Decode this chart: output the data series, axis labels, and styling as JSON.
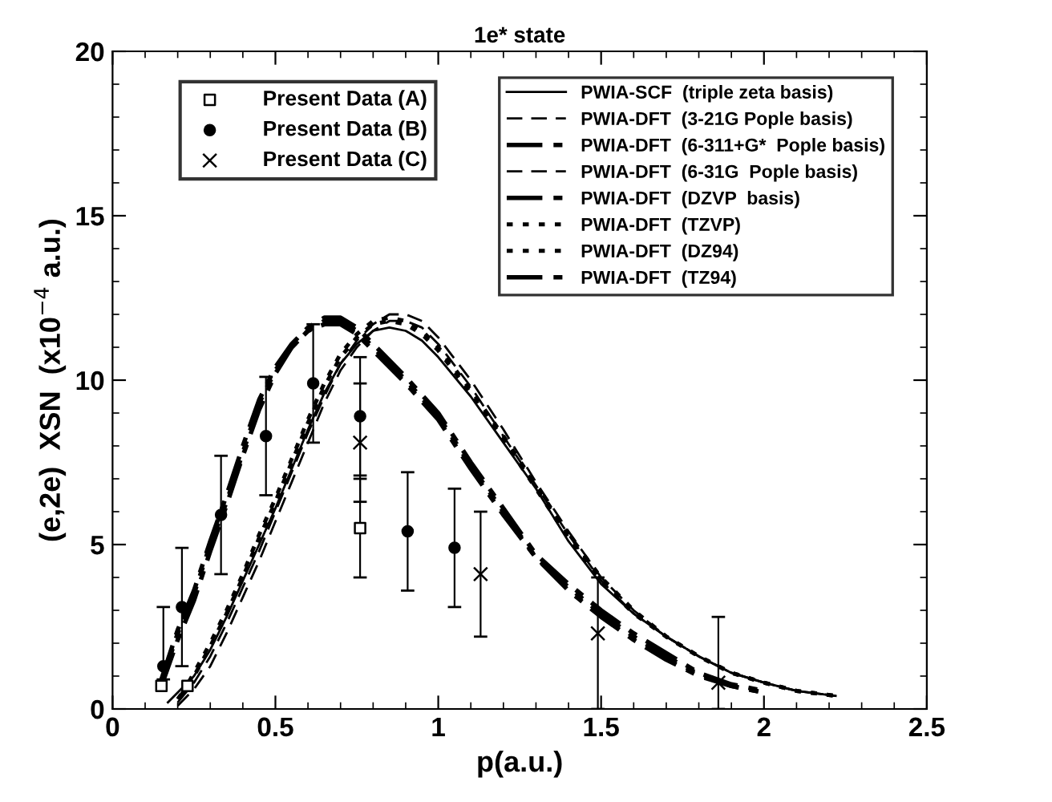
{
  "chart_data": {
    "type": "line",
    "title": "1e* state",
    "xlabel": "p(a.u.)",
    "ylabel": "(e,2e)  XSN  (x10$^{−4}$ a.u.)",
    "xlim": [
      0,
      2.5
    ],
    "ylim": [
      0,
      20
    ],
    "xticks": [
      0,
      0.5,
      1,
      1.5,
      2,
      2.5
    ],
    "yticks": [
      0,
      5,
      10,
      15,
      20
    ],
    "grid": false,
    "legend": "top",
    "series": [
      {
        "name": "Present Data (A)",
        "type": "scatter",
        "marker": "square",
        "color": "#000000",
        "x": [
          0.15,
          0.23,
          0.76
        ],
        "values": [
          0.7,
          0.7,
          5.5
        ],
        "errors": [
          null,
          null,
          [
            4.0,
            7.0
          ]
        ]
      },
      {
        "name": "Present Data (B)",
        "type": "scatter",
        "marker": "circle",
        "color": "#000000",
        "x": [
          0.156,
          0.213,
          0.333,
          0.471,
          0.616,
          0.76,
          0.906,
          1.05
        ],
        "values": [
          1.3,
          3.1,
          5.9,
          8.3,
          9.9,
          8.9,
          5.4,
          4.9
        ],
        "errors": [
          [
            0.9,
            3.1
          ],
          1.8,
          1.8,
          1.8,
          1.8,
          [
            7.1,
            10.7
          ],
          1.8,
          1.8
        ]
      },
      {
        "name": "Present Data (C)",
        "type": "scatter",
        "marker": "cross",
        "color": "#000000",
        "x": [
          0.76,
          1.13,
          1.49,
          1.86
        ],
        "values": [
          8.1,
          4.1,
          2.3,
          0.8
        ],
        "errors": [
          1.8,
          1.9,
          [
            0,
            4.0
          ],
          [
            0,
            2.8
          ]
        ]
      },
      {
        "name": "PWIA-SCF  (triple zeta basis)",
        "line_style": "solid",
        "color": "#000000",
        "x": [
          0.17,
          0.25,
          0.3,
          0.35,
          0.4,
          0.45,
          0.5,
          0.55,
          0.6,
          0.65,
          0.7,
          0.75,
          0.8,
          0.85,
          0.9,
          0.95,
          1.0,
          1.1,
          1.2,
          1.3,
          1.4,
          1.5,
          1.6,
          1.7,
          1.8,
          1.9,
          2.0,
          2.1,
          2.22
        ],
        "values": [
          0.2,
          1.0,
          1.8,
          2.8,
          3.9,
          5.0,
          6.1,
          7.3,
          8.5,
          9.6,
          10.5,
          11.1,
          11.5,
          11.6,
          11.5,
          11.2,
          10.7,
          9.5,
          8.1,
          6.7,
          5.1,
          3.8,
          2.9,
          2.2,
          1.6,
          1.1,
          0.8,
          0.55,
          0.4
        ]
      },
      {
        "name": "PWIA-DFT  (3-21G Pople basis)",
        "line_style": "dashed",
        "color": "#000000",
        "x": [
          0.2,
          0.25,
          0.3,
          0.35,
          0.4,
          0.45,
          0.5,
          0.55,
          0.6,
          0.65,
          0.7,
          0.75,
          0.8,
          0.85,
          0.9,
          0.95,
          1.0,
          1.1,
          1.2,
          1.3,
          1.4,
          1.5,
          1.6,
          1.7,
          1.8,
          1.9,
          2.0,
          2.1,
          2.22
        ],
        "values": [
          0.2,
          0.8,
          1.6,
          2.6,
          3.7,
          4.8,
          6.0,
          7.2,
          8.4,
          9.5,
          10.5,
          11.2,
          11.7,
          12.0,
          12.0,
          11.8,
          11.3,
          10.0,
          8.5,
          6.9,
          5.4,
          4.0,
          3.0,
          2.2,
          1.6,
          1.1,
          0.8,
          0.55,
          0.4
        ]
      },
      {
        "name": "PWIA-DFT  (6-311+G*  Pople basis)",
        "line_style": "dashdot",
        "color": "#000000",
        "x": [
          0.15,
          0.2,
          0.25,
          0.3,
          0.35,
          0.4,
          0.45,
          0.5,
          0.55,
          0.6,
          0.65,
          0.7,
          0.75,
          0.8,
          0.9,
          1.0,
          1.1,
          1.2,
          1.3,
          1.4,
          1.5,
          1.6,
          1.7,
          1.8,
          1.9,
          2.0
        ],
        "values": [
          0.8,
          2.3,
          3.5,
          5.0,
          6.3,
          7.8,
          9.3,
          10.3,
          11.0,
          11.5,
          11.8,
          11.8,
          11.5,
          11.0,
          10.0,
          8.9,
          7.4,
          6.0,
          4.6,
          3.7,
          2.9,
          2.2,
          1.6,
          1.05,
          0.7,
          0.5
        ]
      },
      {
        "name": "PWIA-DFT  (6-31G  Pople basis)",
        "line_style": "dashed",
        "color": "#000000",
        "x": [
          0.2,
          0.25,
          0.3,
          0.35,
          0.4,
          0.45,
          0.5,
          0.55,
          0.6,
          0.65,
          0.7,
          0.75,
          0.8,
          0.85,
          0.9,
          0.95,
          1.0,
          1.1,
          1.2,
          1.3,
          1.4,
          1.5,
          1.6,
          1.7,
          1.8,
          1.9,
          2.0,
          2.1,
          2.22
        ],
        "values": [
          0.1,
          0.6,
          1.3,
          2.3,
          3.4,
          4.5,
          5.7,
          6.9,
          8.1,
          9.3,
          10.3,
          11.0,
          11.5,
          11.8,
          11.8,
          11.6,
          11.1,
          9.8,
          8.3,
          6.8,
          5.3,
          3.9,
          2.9,
          2.2,
          1.6,
          1.1,
          0.8,
          0.55,
          0.4
        ]
      },
      {
        "name": "PWIA-DFT  (DZVP  basis)",
        "line_style": "dashdot",
        "color": "#000000",
        "x": [
          0.15,
          0.2,
          0.25,
          0.3,
          0.35,
          0.4,
          0.45,
          0.5,
          0.55,
          0.6,
          0.65,
          0.7,
          0.75,
          0.8,
          0.9,
          1.0,
          1.1,
          1.2,
          1.3,
          1.4,
          1.5,
          1.6,
          1.7,
          1.8,
          1.9,
          2.0
        ],
        "values": [
          0.7,
          2.1,
          3.3,
          4.8,
          6.2,
          7.7,
          9.1,
          10.2,
          11.0,
          11.5,
          11.7,
          11.7,
          11.4,
          10.9,
          9.9,
          8.8,
          7.3,
          5.9,
          4.6,
          3.6,
          2.8,
          2.1,
          1.5,
          1.0,
          0.7,
          0.5
        ]
      },
      {
        "name": "PWIA-DFT  (TZVP)",
        "line_style": "dotted",
        "color": "#000000",
        "x": [
          0.2,
          0.25,
          0.3,
          0.35,
          0.4,
          0.45,
          0.5,
          0.55,
          0.6,
          0.65,
          0.7,
          0.75,
          0.8,
          0.85,
          0.9,
          0.95,
          1.0,
          1.1,
          1.2,
          1.3,
          1.4,
          1.5,
          1.6,
          1.7,
          1.8,
          1.9,
          2.0,
          2.1,
          2.22
        ],
        "values": [
          0.3,
          1.0,
          1.9,
          2.9,
          4.0,
          5.2,
          6.3,
          7.5,
          8.7,
          9.8,
          10.7,
          11.3,
          11.7,
          11.8,
          11.7,
          11.4,
          10.9,
          9.6,
          8.2,
          6.7,
          5.2,
          3.9,
          2.9,
          2.2,
          1.6,
          1.1,
          0.8,
          0.55,
          0.4
        ]
      },
      {
        "name": "PWIA-DFT  (DZ94)",
        "line_style": "dotted",
        "color": "#000000",
        "x": [
          0.21,
          0.25,
          0.3,
          0.35,
          0.4,
          0.45,
          0.5,
          0.55,
          0.6,
          0.65,
          0.7,
          0.75,
          0.8,
          0.85,
          0.9,
          0.95,
          1.0,
          1.1,
          1.2,
          1.3,
          1.4,
          1.5,
          1.6,
          1.7,
          1.8,
          1.9,
          2.0,
          2.1,
          2.22
        ],
        "values": [
          0.4,
          1.1,
          2.0,
          3.0,
          4.1,
          5.3,
          6.4,
          7.6,
          8.8,
          9.9,
          10.8,
          11.4,
          11.8,
          11.9,
          11.8,
          11.5,
          11.0,
          9.7,
          8.3,
          6.8,
          5.3,
          4.0,
          3.0,
          2.2,
          1.6,
          1.1,
          0.8,
          0.55,
          0.4
        ]
      },
      {
        "name": "PWIA-DFT  (TZ94)",
        "line_style": "dashdot",
        "color": "#000000",
        "x": [
          0.15,
          0.2,
          0.25,
          0.3,
          0.35,
          0.4,
          0.45,
          0.5,
          0.55,
          0.6,
          0.65,
          0.7,
          0.75,
          0.8,
          0.9,
          1.0,
          1.1,
          1.2,
          1.3,
          1.4,
          1.5,
          1.6,
          1.7,
          1.8,
          1.9,
          2.0
        ],
        "values": [
          0.9,
          2.4,
          3.6,
          5.1,
          6.5,
          8.0,
          9.4,
          10.4,
          11.1,
          11.6,
          11.9,
          11.9,
          11.6,
          11.1,
          10.1,
          9.0,
          7.5,
          6.1,
          4.7,
          3.8,
          3.0,
          2.3,
          1.7,
          1.1,
          0.75,
          0.55
        ]
      }
    ]
  }
}
